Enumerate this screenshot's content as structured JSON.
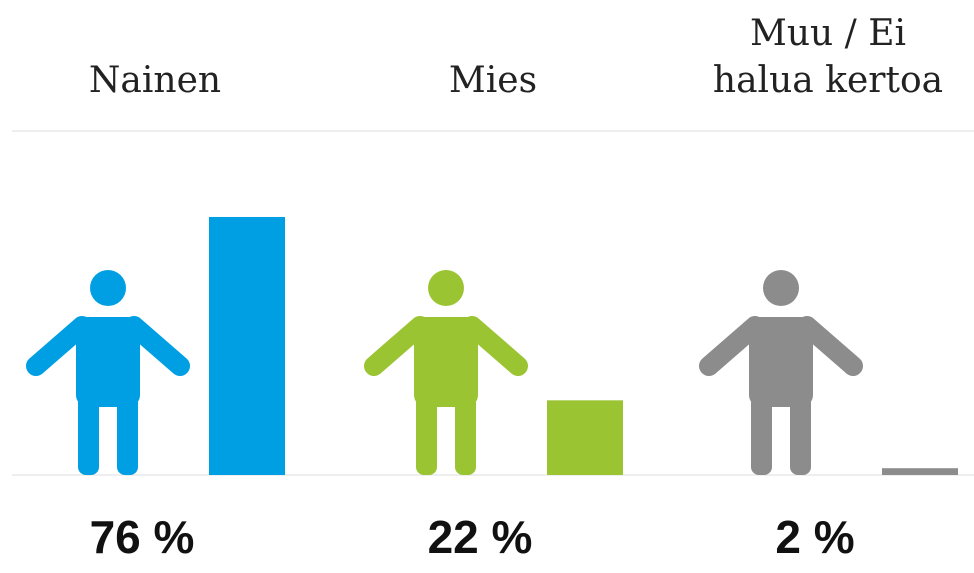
{
  "chart_data": {
    "type": "bar",
    "categories": [
      "Nainen",
      "Mies",
      "Muu / Ei halua kertoa"
    ],
    "values": [
      76,
      22,
      2
    ],
    "value_labels": [
      "76 %",
      "22 %",
      "2 %"
    ],
    "colors": [
      "#009fe3",
      "#9bc432",
      "#8c8c8c"
    ],
    "ylim": [
      0,
      100
    ]
  }
}
